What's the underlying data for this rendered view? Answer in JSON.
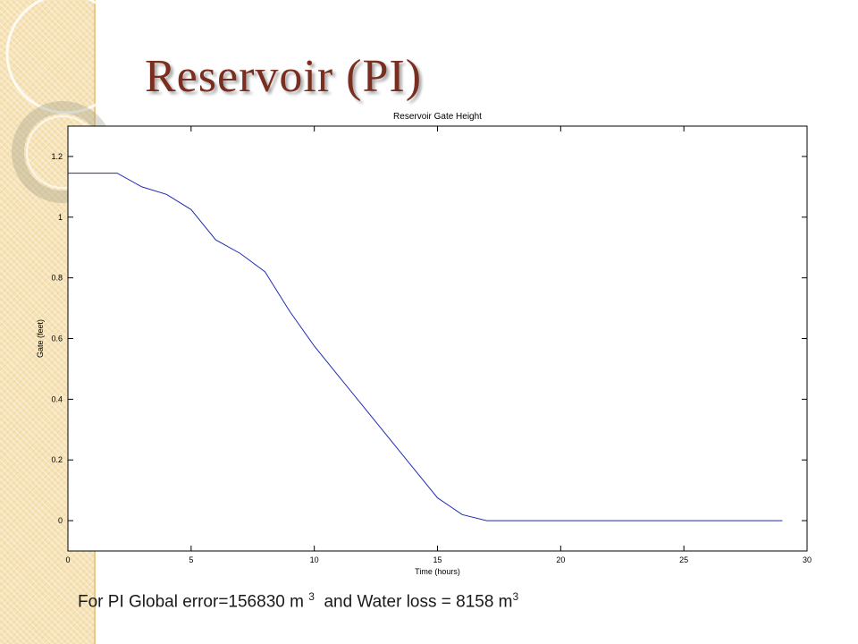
{
  "slide": {
    "title": "Reservoir (PI)",
    "caption": {
      "part1": "For PI Global error=156830 m ",
      "exp1": "3",
      "part2": "  and Water loss = 8158 m",
      "exp2": "3"
    }
  },
  "colors": {
    "title": "#7a2e1f",
    "series": "#1f2bb5",
    "sidebar": "#f6e2b4"
  },
  "chart_data": {
    "type": "line",
    "title": "Reservoir Gate Height",
    "xlabel": "Time (hours)",
    "ylabel": "Gate (feet)",
    "xlim": [
      0,
      30
    ],
    "ylim": [
      -0.1,
      1.3
    ],
    "xticks": [
      0,
      5,
      10,
      15,
      20,
      25,
      30
    ],
    "yticks": [
      0,
      0.2,
      0.4,
      0.6,
      0.8,
      1,
      1.2
    ],
    "grid": false,
    "series": [
      {
        "x": [
          0,
          1,
          2,
          3,
          4,
          5,
          6,
          7,
          8,
          9,
          10,
          11,
          12,
          13,
          14,
          15,
          16,
          17,
          18,
          19,
          20,
          21,
          22,
          23,
          24,
          25,
          26,
          27,
          28,
          29
        ],
        "y": [
          1.145,
          1.145,
          1.145,
          1.1,
          1.075,
          1.025,
          0.925,
          0.88,
          0.82,
          0.69,
          0.575,
          0.475,
          0.375,
          0.275,
          0.175,
          0.075,
          0.02,
          0.0,
          0.0,
          0.0,
          0.0,
          0.0,
          0.0,
          0.0,
          0.0,
          0.0,
          0.0,
          0.0,
          0.0,
          0.0
        ]
      }
    ]
  }
}
